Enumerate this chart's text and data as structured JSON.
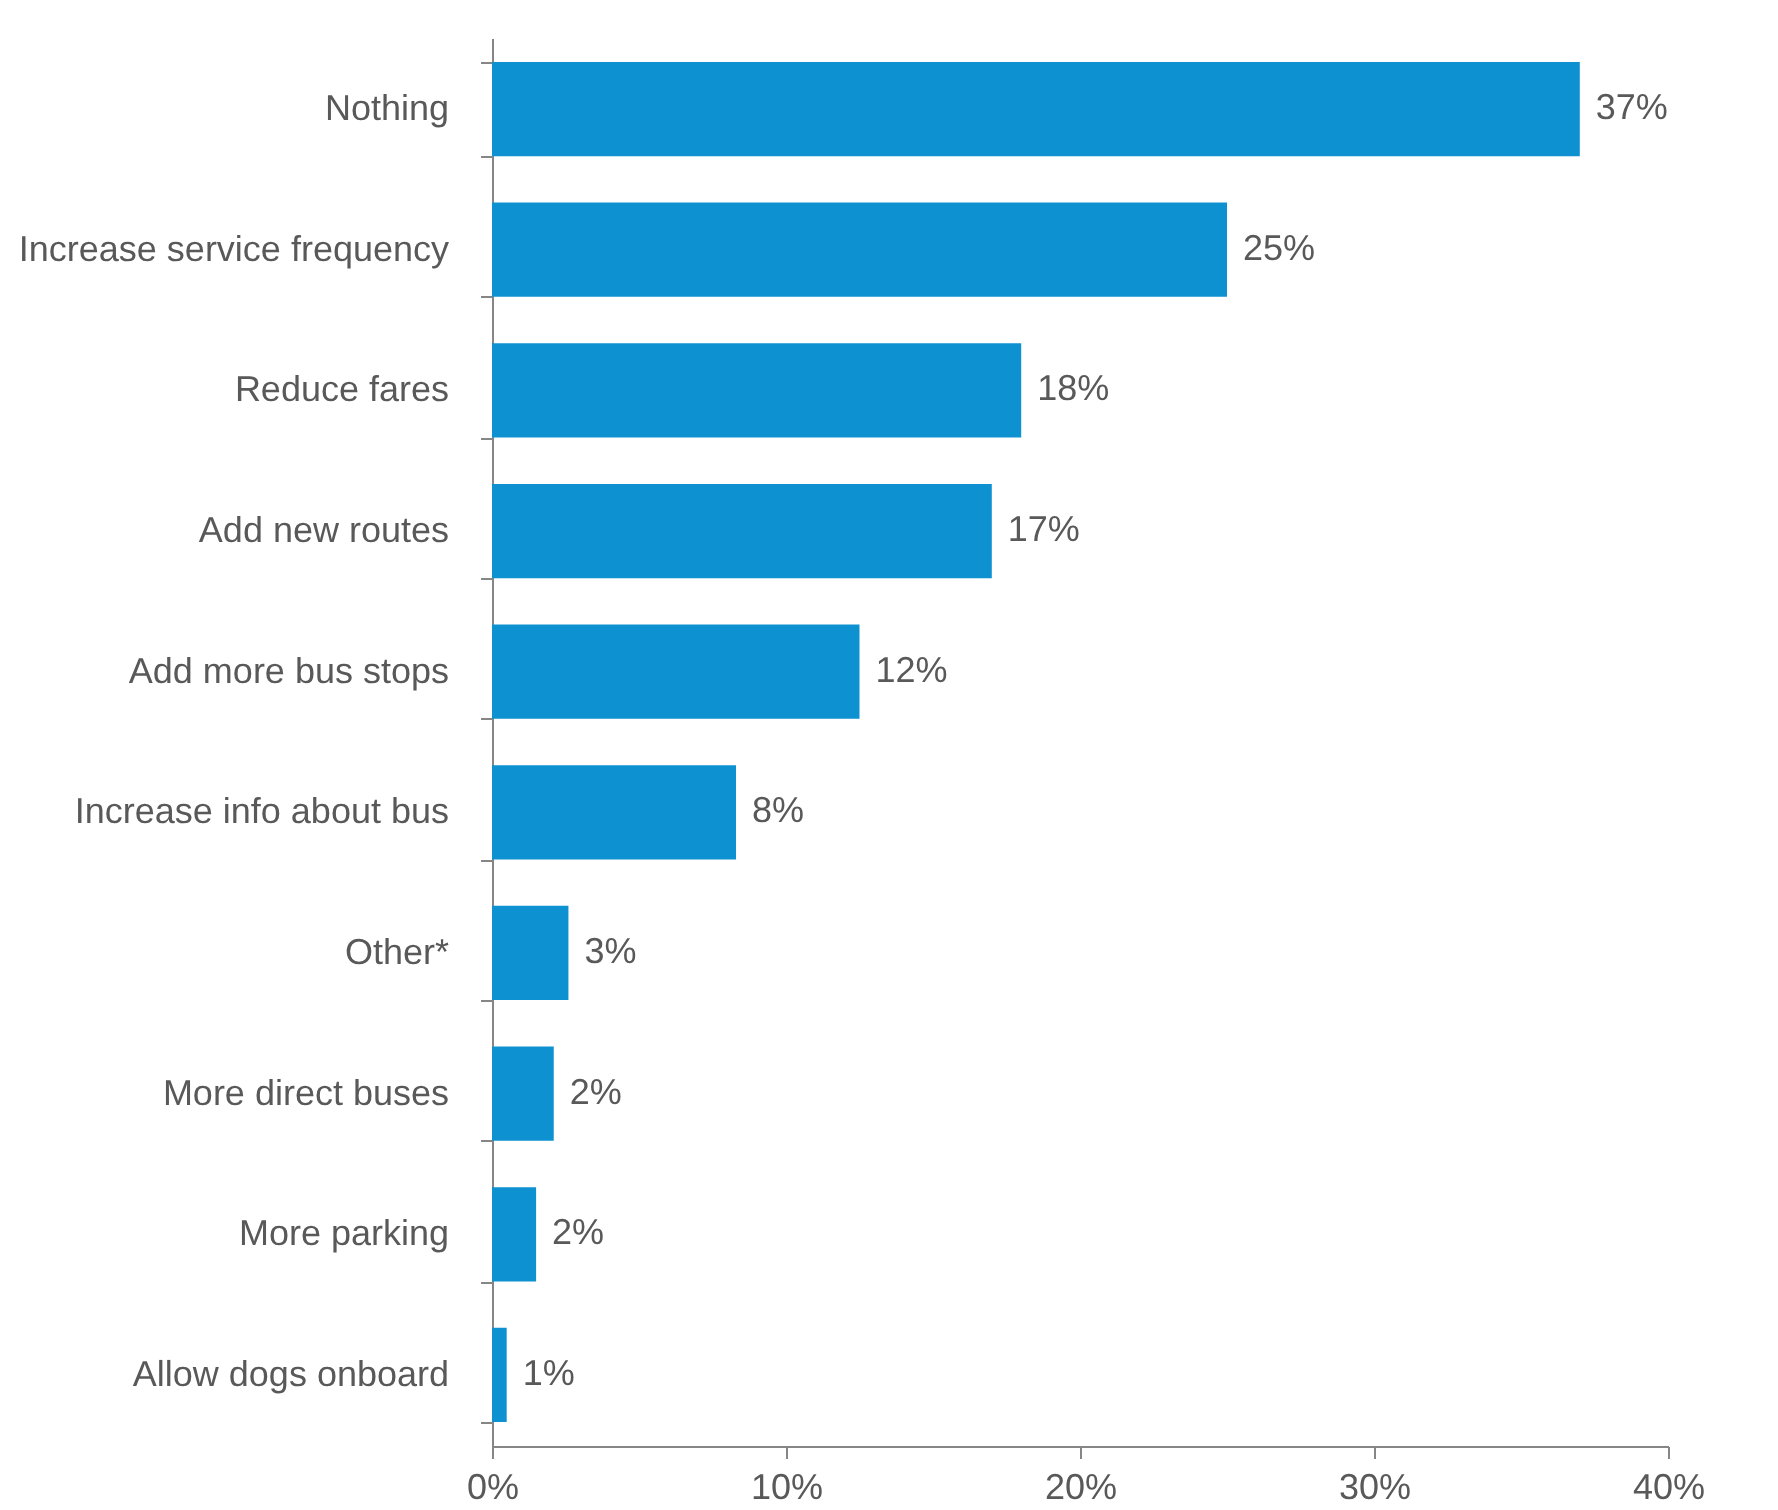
{
  "chart_data": {
    "type": "bar",
    "orientation": "horizontal",
    "categories": [
      "Nothing",
      "Increase service frequency",
      "Reduce fares",
      "Add new routes",
      "Add more bus stops",
      "Increase info about bus",
      "Other*",
      "More direct buses",
      "More parking",
      "Allow dogs onboard"
    ],
    "values": [
      37,
      25,
      18,
      17,
      12.5,
      8.3,
      2.6,
      2.1,
      1.5,
      0.5
    ],
    "value_labels": [
      "37%",
      "25%",
      "18%",
      "17%",
      "12%",
      "8%",
      "3%",
      "2%",
      "2%",
      "1%"
    ],
    "color": "#0e91d0",
    "xlim": [
      0,
      40
    ],
    "xticks": [
      {
        "value": 0,
        "label": "0%"
      },
      {
        "value": 10,
        "label": "10%"
      },
      {
        "value": 20,
        "label": "20%"
      },
      {
        "value": 30,
        "label": "30%"
      },
      {
        "value": 40,
        "label": "40%"
      }
    ]
  }
}
